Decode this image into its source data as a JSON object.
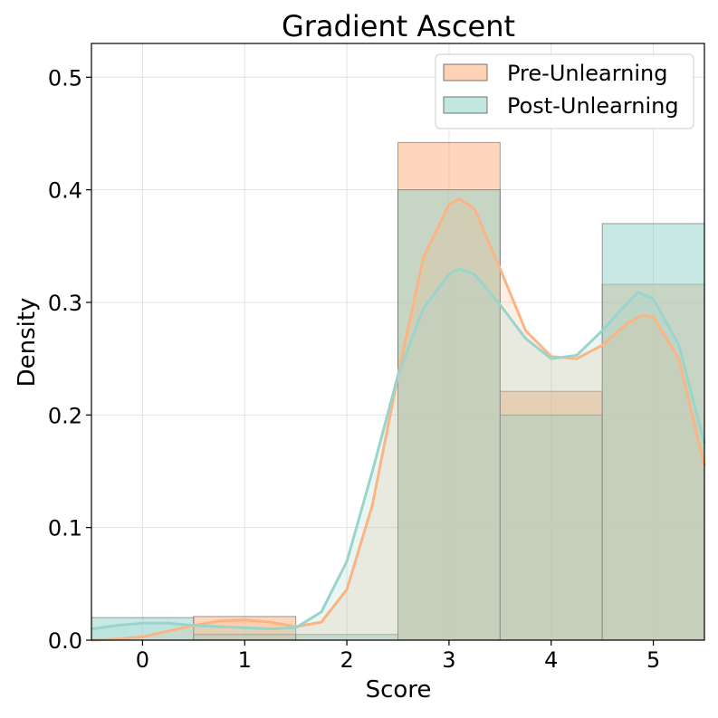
{
  "chart_data": {
    "type": "bar",
    "title": "Gradient Ascent",
    "xlabel": "Score",
    "ylabel": "Density",
    "xlim": [
      -0.5,
      5.5
    ],
    "ylim": [
      0,
      0.53
    ],
    "x_ticks": [
      0,
      1,
      2,
      3,
      4,
      5
    ],
    "x_tick_labels": [
      "0",
      "1",
      "2",
      "3",
      "4",
      "5"
    ],
    "y_ticks": [
      0.0,
      0.1,
      0.2,
      0.3,
      0.4,
      0.5
    ],
    "y_tick_labels": [
      "0.0",
      "0.1",
      "0.2",
      "0.3",
      "0.4",
      "0.5"
    ],
    "categories": [
      0,
      1,
      2,
      3,
      4,
      5
    ],
    "grid": true,
    "legend_position": "top-right",
    "series": [
      {
        "name": "Pre-Unlearning",
        "color": "#fbb584",
        "values": [
          0.0,
          0.021,
          0.0,
          0.442,
          0.221,
          0.316
        ],
        "kde": {
          "x": [
            -0.5,
            -0.25,
            0.0,
            0.25,
            0.5,
            0.75,
            1.0,
            1.25,
            1.5,
            1.75,
            2.0,
            2.25,
            2.5,
            2.75,
            3.0,
            3.1,
            3.25,
            3.5,
            3.75,
            4.0,
            4.25,
            4.5,
            4.75,
            4.9,
            5.0,
            5.25,
            5.5
          ],
          "y": [
            0.0,
            0.001,
            0.003,
            0.008,
            0.013,
            0.017,
            0.018,
            0.016,
            0.012,
            0.016,
            0.045,
            0.12,
            0.235,
            0.34,
            0.387,
            0.392,
            0.383,
            0.33,
            0.275,
            0.252,
            0.25,
            0.262,
            0.282,
            0.289,
            0.287,
            0.25,
            0.155
          ]
        }
      },
      {
        "name": "Post-Unlearning",
        "color": "#99d5cc",
        "values": [
          0.02,
          0.005,
          0.005,
          0.4,
          0.2,
          0.37
        ],
        "kde": {
          "x": [
            -0.5,
            -0.25,
            0.0,
            0.25,
            0.5,
            0.75,
            1.0,
            1.25,
            1.5,
            1.75,
            2.0,
            2.25,
            2.5,
            2.75,
            3.0,
            3.1,
            3.25,
            3.5,
            3.75,
            4.0,
            4.25,
            4.5,
            4.75,
            4.85,
            5.0,
            5.25,
            5.5
          ],
          "y": [
            0.01,
            0.013,
            0.015,
            0.015,
            0.013,
            0.012,
            0.011,
            0.01,
            0.011,
            0.025,
            0.07,
            0.15,
            0.235,
            0.295,
            0.325,
            0.33,
            0.325,
            0.298,
            0.268,
            0.25,
            0.253,
            0.275,
            0.3,
            0.309,
            0.303,
            0.262,
            0.175
          ]
        }
      }
    ]
  }
}
